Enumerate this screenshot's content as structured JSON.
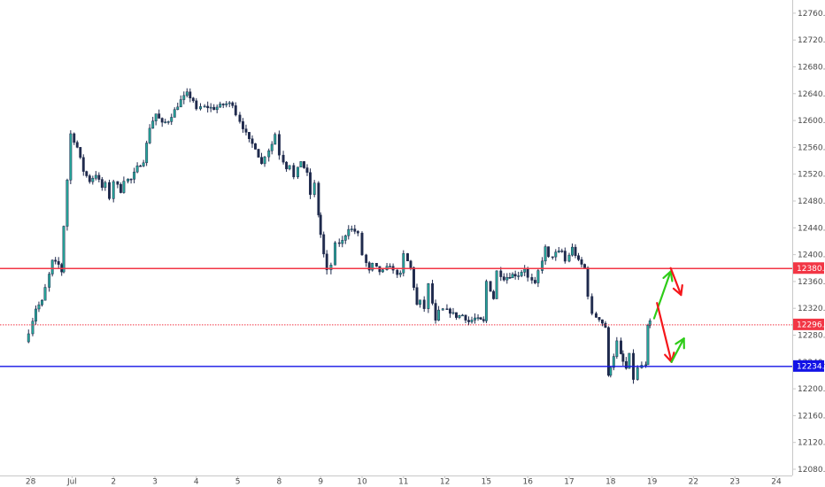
{
  "chart_data": {
    "type": "candlestick",
    "ylim": [
      12060,
      12790
    ],
    "yticks": [
      "12080.0",
      "12120.0",
      "12160.0",
      "12200.0",
      "12240.0",
      "12280.0",
      "12320.0",
      "12360.0",
      "12400.0",
      "12440.0",
      "12480.0",
      "12520.0",
      "12560.0",
      "12600.0",
      "12640.0",
      "12680.0",
      "12720.0",
      "12760.0"
    ],
    "ytick_values": [
      12080,
      12120,
      12160,
      12200,
      12240,
      12280,
      12320,
      12360,
      12400,
      12440,
      12480,
      12520,
      12560,
      12600,
      12640,
      12680,
      12720,
      12760
    ],
    "xlim": [
      -0.55,
      17.3
    ],
    "xticks": [
      {
        "label": "28",
        "t": -0.5
      },
      {
        "label": "Jul",
        "t": 0.5
      },
      {
        "label": "2",
        "t": 1.5
      },
      {
        "label": "3",
        "t": 2.5
      },
      {
        "label": "4",
        "t": 3.5
      },
      {
        "label": "5",
        "t": 4.5
      },
      {
        "label": "8",
        "t": 5.5
      },
      {
        "label": "9",
        "t": 6.5
      },
      {
        "label": "10",
        "t": 7.5
      },
      {
        "label": "11",
        "t": 8.5
      },
      {
        "label": "12",
        "t": 9.5
      },
      {
        "label": "15",
        "t": 10.5
      },
      {
        "label": "16",
        "t": 11.5
      },
      {
        "label": "17",
        "t": 12.5
      },
      {
        "label": "18",
        "t": 13.5
      },
      {
        "label": "19",
        "t": 14.5
      },
      {
        "label": "22",
        "t": 15.5
      },
      {
        "label": "23",
        "t": 16.5
      },
      {
        "label": "24",
        "t": 17.5
      }
    ],
    "path": [
      [
        -0.55,
        12270
      ],
      [
        -0.45,
        12285
      ],
      [
        -0.3,
        12320
      ],
      [
        -0.15,
        12330
      ],
      [
        -0.05,
        12350
      ],
      [
        0.1,
        12390
      ],
      [
        0.25,
        12385
      ],
      [
        0.3,
        12375
      ],
      [
        0.55,
        12580
      ],
      [
        0.7,
        12560
      ],
      [
        0.85,
        12525
      ],
      [
        1.0,
        12510
      ],
      [
        1.15,
        12520
      ],
      [
        1.3,
        12500
      ],
      [
        1.4,
        12505
      ],
      [
        1.5,
        12485
      ],
      [
        1.6,
        12510
      ],
      [
        1.75,
        12495
      ],
      [
        1.85,
        12512
      ],
      [
        2.0,
        12512
      ],
      [
        2.15,
        12530
      ],
      [
        2.3,
        12540
      ],
      [
        2.45,
        12590
      ],
      [
        2.6,
        12610
      ],
      [
        2.75,
        12595
      ],
      [
        2.9,
        12600
      ],
      [
        3.05,
        12615
      ],
      [
        3.2,
        12630
      ],
      [
        3.35,
        12640
      ],
      [
        3.5,
        12630
      ],
      [
        3.6,
        12615
      ],
      [
        3.7,
        12620
      ],
      [
        3.85,
        12620
      ],
      [
        4.0,
        12618
      ],
      [
        4.15,
        12622
      ],
      [
        4.3,
        12625
      ],
      [
        4.45,
        12625
      ],
      [
        4.55,
        12610
      ],
      [
        4.7,
        12590
      ],
      [
        4.85,
        12570
      ],
      [
        5.0,
        12560
      ],
      [
        5.15,
        12535
      ],
      [
        5.25,
        12548
      ],
      [
        5.4,
        12565
      ],
      [
        5.5,
        12580
      ],
      [
        5.6,
        12550
      ],
      [
        5.75,
        12530
      ],
      [
        5.85,
        12535
      ],
      [
        5.95,
        12515
      ],
      [
        6.1,
        12540
      ],
      [
        6.25,
        12520
      ],
      [
        6.35,
        12490
      ],
      [
        6.45,
        12505
      ],
      [
        6.5,
        12460
      ],
      [
        6.65,
        12400
      ],
      [
        6.75,
        12375
      ],
      [
        6.85,
        12385
      ],
      [
        6.95,
        12415
      ],
      [
        7.1,
        12420
      ],
      [
        7.25,
        12440
      ],
      [
        7.4,
        12435
      ],
      [
        7.5,
        12430
      ],
      [
        7.6,
        12400
      ],
      [
        7.75,
        12375
      ],
      [
        7.85,
        12385
      ],
      [
        8.0,
        12375
      ],
      [
        8.1,
        12375
      ],
      [
        8.25,
        12385
      ],
      [
        8.35,
        12375
      ],
      [
        8.5,
        12370
      ],
      [
        8.6,
        12400
      ],
      [
        8.75,
        12380
      ],
      [
        8.9,
        12325
      ],
      [
        9.0,
        12330
      ],
      [
        9.1,
        12320
      ],
      [
        9.2,
        12355
      ],
      [
        9.35,
        12300
      ],
      [
        9.45,
        12315
      ],
      [
        9.55,
        12318
      ],
      [
        9.7,
        12315
      ],
      [
        9.85,
        12308
      ],
      [
        10.0,
        12310
      ],
      [
        10.15,
        12300
      ],
      [
        10.3,
        12305
      ],
      [
        10.5,
        12300
      ],
      [
        10.6,
        12360
      ],
      [
        10.75,
        12335
      ],
      [
        10.85,
        12375
      ],
      [
        11.0,
        12365
      ],
      [
        11.2,
        12370
      ],
      [
        11.35,
        12370
      ],
      [
        11.5,
        12380
      ],
      [
        11.6,
        12365
      ],
      [
        11.75,
        12355
      ],
      [
        11.85,
        12375
      ],
      [
        12.0,
        12410
      ],
      [
        12.1,
        12395
      ],
      [
        12.25,
        12402
      ],
      [
        12.4,
        12405
      ],
      [
        12.5,
        12390
      ],
      [
        12.65,
        12410
      ],
      [
        12.8,
        12390
      ],
      [
        12.95,
        12380
      ],
      [
        13.05,
        12340
      ],
      [
        13.15,
        12310
      ],
      [
        13.3,
        12305
      ],
      [
        13.45,
        12292
      ],
      [
        13.5,
        12218
      ],
      [
        13.65,
        12250
      ],
      [
        13.75,
        12270
      ],
      [
        13.8,
        12250
      ],
      [
        13.95,
        12230
      ],
      [
        14.05,
        12250
      ],
      [
        14.15,
        12215
      ],
      [
        14.25,
        12230
      ],
      [
        14.35,
        12235
      ],
      [
        14.4,
        12234
      ],
      [
        14.45,
        12292
      ],
      [
        14.55,
        12300
      ]
    ],
    "lines": [
      {
        "value": 12380.0,
        "label": "12380.0",
        "color": "#f23645",
        "style": "solid"
      },
      {
        "value": 12296.0,
        "label": "12296.0",
        "color": "#f23645",
        "style": "dotted"
      },
      {
        "value": 12234.0,
        "label": "12234.0",
        "color": "#1212e6",
        "style": "solid"
      }
    ],
    "arrows": [
      {
        "from": [
          14.55,
          12305
        ],
        "to": [
          14.95,
          12375
        ],
        "color": "#2ecc18"
      },
      {
        "from": [
          14.95,
          12380
        ],
        "to": [
          15.2,
          12340
        ],
        "color": "#f5161a"
      },
      {
        "from": [
          14.62,
          12328
        ],
        "to": [
          14.97,
          12240
        ],
        "color": "#f5161a"
      },
      {
        "from": [
          14.97,
          12240
        ],
        "to": [
          15.27,
          12275
        ],
        "color": "#2ecc18"
      }
    ],
    "colors": {
      "up": "#26a69a",
      "down": "#1f2a4d",
      "wick": "#1f2a4d",
      "axis": "#c8c8c8"
    }
  }
}
